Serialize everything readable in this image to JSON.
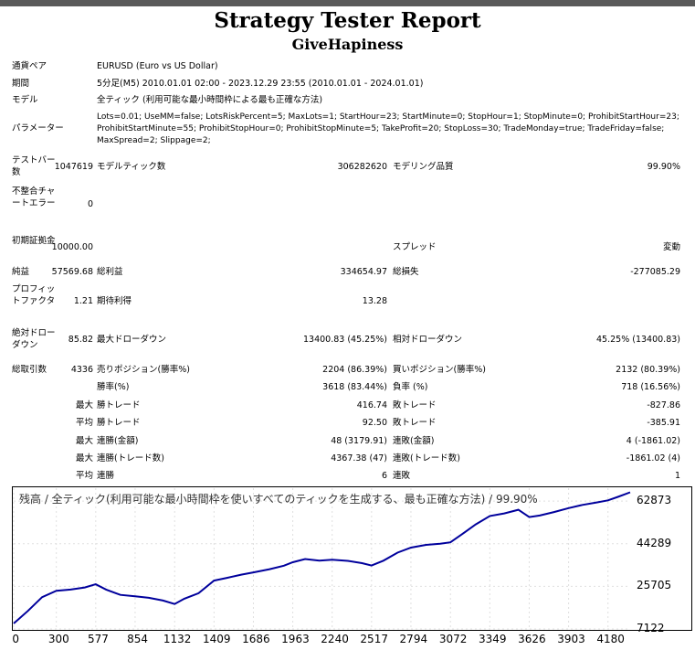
{
  "report": {
    "title": "Strategy Tester Report",
    "ea_name": "GiveHapiness"
  },
  "settings": {
    "symbol_label": "通貨ペア",
    "symbol_value": "EURUSD (Euro vs US Dollar)",
    "period_label": "期間",
    "period_value": "5分足(M5) 2010.01.01 02:00 - 2023.12.29 23:55 (2010.01.01 - 2024.01.01)",
    "model_label": "モデル",
    "model_value": "全ティック (利用可能な最小時間枠による最も正確な方法)",
    "params_label": "パラメーター",
    "params_value": "Lots=0.01; UseMM=false; LotsRiskPercent=5; MaxLots=1; StartHour=23; StartMinute=0; StopHour=1; StopMinute=0; ProhibitStartHour=23; ProhibitStartMinute=55; ProhibitStopHour=0; ProhibitStopMinute=5; TakeProfit=20; StopLoss=30; TradeMonday=true; TradeFriday=false; MaxSpread=2; Slippage=2;"
  },
  "stats": {
    "bars_label": "テストバー数",
    "bars_value": "1047619",
    "ticks_label": "モデルティック数",
    "ticks_value": "306282620",
    "quality_label": "モデリング品質",
    "quality_value": "99.90%",
    "mismatch_label": "不整合チャートエラー",
    "mismatch_value": "0",
    "deposit_label": "初期証拠金",
    "deposit_value": "10000.00",
    "spread_label": "スプレッド",
    "spread_value": "変動",
    "netprofit_label": "純益",
    "netprofit_value": "57569.68",
    "grossprofit_label": "総利益",
    "grossprofit_value": "334654.97",
    "grossloss_label": "総損失",
    "grossloss_value": "-277085.29",
    "pf_label": "プロフィットファクタ",
    "pf_value": "1.21",
    "expected_label": "期待利得",
    "expected_value": "13.28",
    "absdd_label": "絶対ドローダウン",
    "absdd_value": "85.82",
    "maxdd_label": "最大ドローダウン",
    "maxdd_value": "13400.83 (45.25%)",
    "reldd_label": "相対ドローダウン",
    "reldd_value": "45.25% (13400.83)",
    "trades_label": "総取引数",
    "trades_value": "4336",
    "short_label": "売りポジション(勝率%)",
    "short_value": "2204 (86.39%)",
    "long_label": "買いポジション(勝率%)",
    "long_value": "2132 (80.39%)",
    "winrate_label": "勝率(%)",
    "winrate_value": "3618 (83.44%)",
    "lossrate_label": "負率 (%)",
    "lossrate_value": "718 (16.56%)",
    "largest_label": "最大",
    "largest_win_label": "勝トレード",
    "largest_win_value": "416.74",
    "largest_loss_label": "敗トレード",
    "largest_loss_value": "-827.86",
    "average_label": "平均",
    "average_win_label": "勝トレード",
    "average_win_value": "92.50",
    "average_loss_label": "敗トレード",
    "average_loss_value": "-385.91",
    "max1_label": "最大",
    "consec_wins_money_label": "連勝(金額)",
    "consec_wins_money_value": "48 (3179.91)",
    "consec_losses_money_label": "連敗(金額)",
    "consec_losses_money_value": "4 (-1861.02)",
    "max2_label": "最大",
    "consec_profit_count_label": "連勝(トレード数)",
    "consec_profit_count_value": "4367.38 (47)",
    "consec_loss_count_label": "連敗(トレード数)",
    "consec_loss_count_value": "-1861.02 (4)",
    "avg2_label": "平均",
    "avg_consec_wins_label": "連勝",
    "avg_consec_wins_value": "6",
    "avg_consec_losses_label": "連敗",
    "avg_consec_losses_value": "1"
  },
  "chart_data": {
    "type": "line",
    "title": "残高 / 全ティック(利用可能な最小時間枠を使いすべてのティックを生成する、最も正確な方法) / 99.90%",
    "x_ticks": [
      0,
      300,
      577,
      854,
      1132,
      1409,
      1686,
      1963,
      2240,
      2517,
      2794,
      3072,
      3349,
      3626,
      3903,
      4180
    ],
    "y_ticks": [
      7122,
      25705,
      44289,
      62873
    ],
    "xlim": [
      0,
      4336
    ],
    "ylim": [
      7122,
      68500
    ],
    "line_color": "#00009c",
    "series": [
      {
        "x": [
          0,
          100,
          200,
          300,
          400,
          500,
          577,
          650,
          750,
          854,
          950,
          1050,
          1132,
          1200,
          1300,
          1409,
          1500,
          1600,
          1686,
          1800,
          1900,
          1963,
          2050,
          2150,
          2240,
          2350,
          2450,
          2517,
          2600,
          2700,
          2794,
          2900,
          3000,
          3072,
          3150,
          3250,
          3349,
          3450,
          3550,
          3626,
          3700,
          3800,
          3903,
          4000,
          4100,
          4180,
          4250,
          4336
        ],
        "y": [
          9500,
          15000,
          21000,
          23800,
          24300,
          25200,
          26600,
          24300,
          22000,
          21400,
          20700,
          19500,
          18000,
          20300,
          22700,
          28200,
          29400,
          30800,
          31800,
          33200,
          34700,
          36200,
          37600,
          36900,
          37300,
          36800,
          35800,
          34800,
          36900,
          40400,
          42600,
          43800,
          44300,
          44900,
          48300,
          52700,
          56400,
          57500,
          59100,
          55900,
          56600,
          58100,
          59800,
          61200,
          62300,
          63200,
          64700,
          66700
        ]
      }
    ]
  }
}
